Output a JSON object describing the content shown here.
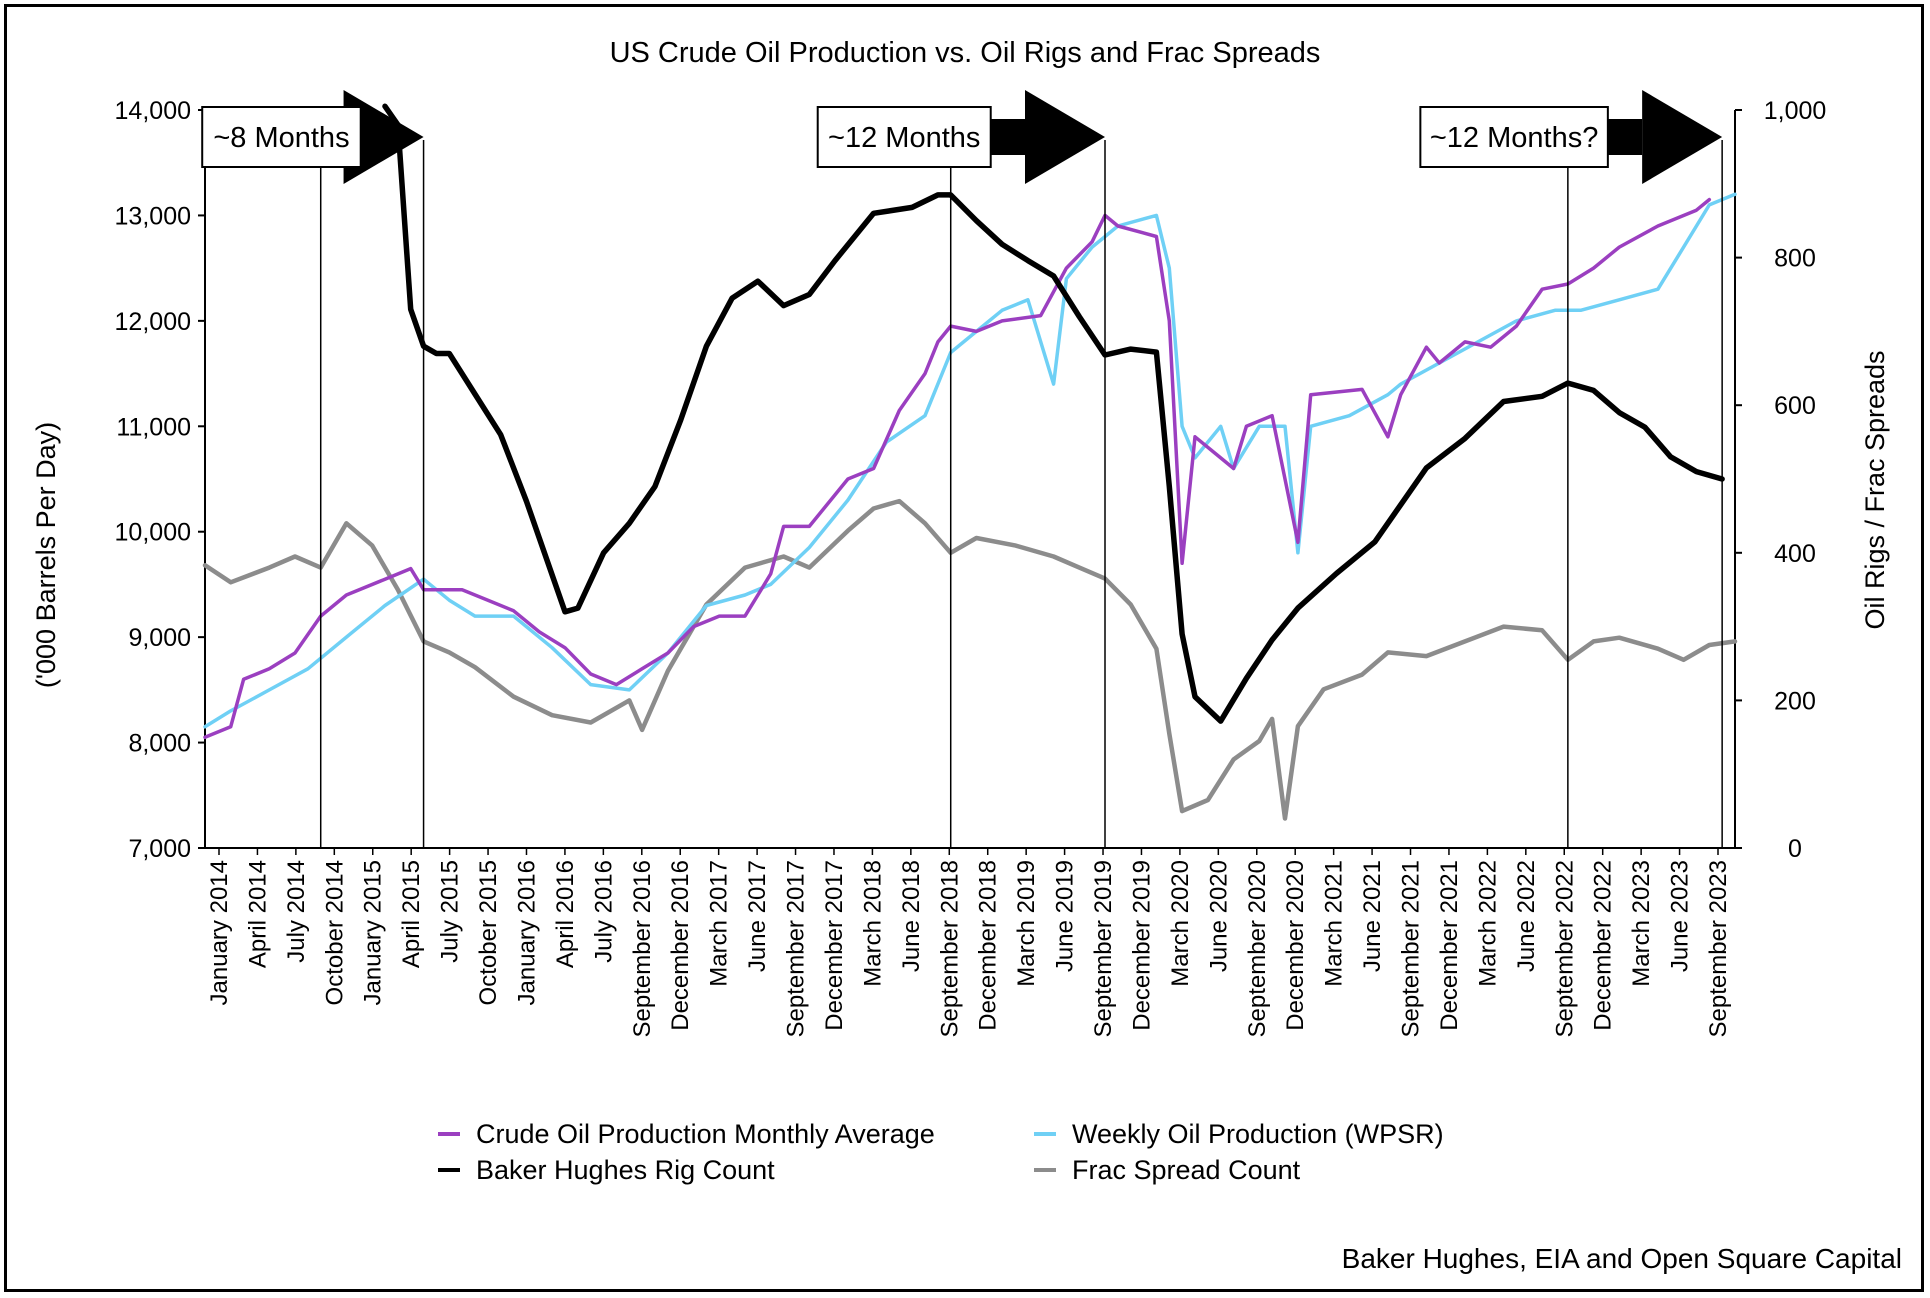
{
  "chart_data": {
    "type": "line",
    "title": "US Crude Oil Production vs. Oil Rigs and Frac Spreads",
    "ylabel_left": "('000 Barrels Per Day)",
    "ylabel_right": "Oil Rigs / Frac Spreads",
    "source": "Baker Hughes, EIA and Open Square Capital",
    "left_axis": {
      "min": 7000,
      "max": 14000,
      "ticks": [
        7000,
        8000,
        9000,
        10000,
        11000,
        12000,
        13000,
        14000
      ],
      "tick_labels": [
        "7,000",
        "8,000",
        "9,000",
        "10,000",
        "11,000",
        "12,000",
        "13,000",
        "14,000"
      ]
    },
    "right_axis": {
      "min": 0,
      "max": 1000,
      "ticks": [
        0,
        200,
        400,
        600,
        800,
        1000
      ],
      "tick_labels": [
        "0",
        "200",
        "400",
        "600",
        "800",
        "1,000"
      ]
    },
    "x_range": [
      "2014-01",
      "2023-12"
    ],
    "x_tick_labels": [
      "January 2014",
      "April 2014",
      "July 2014",
      "October 2014",
      "January 2015",
      "April 2015",
      "July 2015",
      "October 2015",
      "January 2016",
      "April 2016",
      "July 2016",
      "September 2016",
      "December 2016",
      "March 2017",
      "June 2017",
      "September 2017",
      "December 2017",
      "March 2018",
      "June 2018",
      "September 2018",
      "December 2018",
      "March 2019",
      "June 2019",
      "September 2019",
      "December 2019",
      "March 2020",
      "June 2020",
      "September 2020",
      "December 2020",
      "March 2021",
      "June 2021",
      "September 2021",
      "December 2021",
      "March 2022",
      "June 2022",
      "September 2022",
      "December 2022",
      "March 2023",
      "June 2023",
      "September 2023"
    ],
    "legend": [
      "Crude Oil Production Monthly Average",
      "Weekly Oil Production (WPSR)",
      "Baker Hughes Rig Count",
      "Frac Spread Count"
    ],
    "colors": {
      "Crude Oil Production Monthly Average": "#9b3fc0",
      "Weekly Oil Production (WPSR)": "#6fd0f5",
      "Baker Hughes Rig Count": "#000000",
      "Frac Spread Count": "#8c8c8c"
    },
    "annotations": [
      {
        "text": "~8 Months",
        "from": "2014-10",
        "to": "2015-06"
      },
      {
        "text": "~12 Months",
        "from": "2018-11",
        "to": "2019-11"
      },
      {
        "text": "~12 Months?",
        "from": "2022-11",
        "to": "2023-11"
      }
    ],
    "vertical_markers": [
      "2014-10",
      "2015-06",
      "2018-11",
      "2019-11",
      "2022-11",
      "2023-11"
    ],
    "series": [
      {
        "name": "Crude Oil Production Monthly Average",
        "axis": "left",
        "points": [
          [
            "2014-01",
            8050
          ],
          [
            "2014-03",
            8150
          ],
          [
            "2014-04",
            8600
          ],
          [
            "2014-06",
            8700
          ],
          [
            "2014-08",
            8850
          ],
          [
            "2014-10",
            9200
          ],
          [
            "2014-12",
            9400
          ],
          [
            "2015-03",
            9550
          ],
          [
            "2015-05",
            9650
          ],
          [
            "2015-06",
            9450
          ],
          [
            "2015-09",
            9450
          ],
          [
            "2015-11",
            9350
          ],
          [
            "2016-01",
            9250
          ],
          [
            "2016-03",
            9050
          ],
          [
            "2016-05",
            8900
          ],
          [
            "2016-07",
            8650
          ],
          [
            "2016-09",
            8550
          ],
          [
            "2016-11",
            8700
          ],
          [
            "2017-01",
            8850
          ],
          [
            "2017-03",
            9100
          ],
          [
            "2017-05",
            9200
          ],
          [
            "2017-07",
            9200
          ],
          [
            "2017-08",
            9400
          ],
          [
            "2017-09",
            9600
          ],
          [
            "2017-10",
            10050
          ],
          [
            "2017-12",
            10050
          ],
          [
            "2018-03",
            10500
          ],
          [
            "2018-05",
            10600
          ],
          [
            "2018-07",
            11150
          ],
          [
            "2018-09",
            11500
          ],
          [
            "2018-10",
            11800
          ],
          [
            "2018-11",
            11950
          ],
          [
            "2019-01",
            11900
          ],
          [
            "2019-03",
            12000
          ],
          [
            "2019-06",
            12050
          ],
          [
            "2019-08",
            12500
          ],
          [
            "2019-10",
            12750
          ],
          [
            "2019-11",
            13000
          ],
          [
            "2019-12",
            12900
          ],
          [
            "2020-03",
            12800
          ],
          [
            "2020-04",
            12000
          ],
          [
            "2020-05",
            9700
          ],
          [
            "2020-06",
            10900
          ],
          [
            "2020-08",
            10700
          ],
          [
            "2020-09",
            10600
          ],
          [
            "2020-10",
            11000
          ],
          [
            "2020-12",
            11100
          ],
          [
            "2021-02",
            9900
          ],
          [
            "2021-03",
            11300
          ],
          [
            "2021-07",
            11350
          ],
          [
            "2021-09",
            10900
          ],
          [
            "2021-10",
            11300
          ],
          [
            "2021-12",
            11750
          ],
          [
            "2022-01",
            11600
          ],
          [
            "2022-03",
            11800
          ],
          [
            "2022-05",
            11750
          ],
          [
            "2022-07",
            11950
          ],
          [
            "2022-09",
            12300
          ],
          [
            "2022-11",
            12350
          ],
          [
            "2023-01",
            12500
          ],
          [
            "2023-03",
            12700
          ],
          [
            "2023-06",
            12900
          ],
          [
            "2023-09",
            13050
          ],
          [
            "2023-10",
            13150
          ]
        ]
      },
      {
        "name": "Weekly Oil Production (WPSR)",
        "axis": "left",
        "points": [
          [
            "2014-01",
            8150
          ],
          [
            "2014-03",
            8300
          ],
          [
            "2014-06",
            8500
          ],
          [
            "2014-09",
            8700
          ],
          [
            "2014-12",
            9000
          ],
          [
            "2015-03",
            9300
          ],
          [
            "2015-06",
            9550
          ],
          [
            "2015-08",
            9350
          ],
          [
            "2015-10",
            9200
          ],
          [
            "2016-01",
            9200
          ],
          [
            "2016-04",
            8900
          ],
          [
            "2016-07",
            8550
          ],
          [
            "2016-10",
            8500
          ],
          [
            "2017-01",
            8850
          ],
          [
            "2017-04",
            9300
          ],
          [
            "2017-07",
            9400
          ],
          [
            "2017-09",
            9500
          ],
          [
            "2017-12",
            9850
          ],
          [
            "2018-03",
            10300
          ],
          [
            "2018-06",
            10850
          ],
          [
            "2018-09",
            11100
          ],
          [
            "2018-11",
            11700
          ],
          [
            "2019-01",
            11900
          ],
          [
            "2019-03",
            12100
          ],
          [
            "2019-05",
            12200
          ],
          [
            "2019-07",
            11400
          ],
          [
            "2019-08",
            12400
          ],
          [
            "2019-10",
            12700
          ],
          [
            "2019-12",
            12900
          ],
          [
            "2020-03",
            13000
          ],
          [
            "2020-04",
            12500
          ],
          [
            "2020-05",
            11000
          ],
          [
            "2020-06",
            10700
          ],
          [
            "2020-08",
            11000
          ],
          [
            "2020-09",
            10600
          ],
          [
            "2020-11",
            11000
          ],
          [
            "2021-01",
            11000
          ],
          [
            "2021-02",
            9800
          ],
          [
            "2021-03",
            11000
          ],
          [
            "2021-06",
            11100
          ],
          [
            "2021-09",
            11300
          ],
          [
            "2021-10",
            11400
          ],
          [
            "2022-01",
            11600
          ],
          [
            "2022-04",
            11800
          ],
          [
            "2022-07",
            12000
          ],
          [
            "2022-10",
            12100
          ],
          [
            "2022-12",
            12100
          ],
          [
            "2023-03",
            12200
          ],
          [
            "2023-06",
            12300
          ],
          [
            "2023-08",
            12700
          ],
          [
            "2023-10",
            13100
          ],
          [
            "2023-12",
            13200
          ]
        ]
      },
      {
        "name": "Baker Hughes Rig Count",
        "axis": "right",
        "points": [
          [
            "2015-03",
            1005
          ],
          [
            "2015-04",
            980
          ],
          [
            "2015-05",
            730
          ],
          [
            "2015-06",
            680
          ],
          [
            "2015-07",
            670
          ],
          [
            "2015-08",
            670
          ],
          [
            "2015-10",
            615
          ],
          [
            "2015-12",
            560
          ],
          [
            "2016-02",
            470
          ],
          [
            "2016-05",
            320
          ],
          [
            "2016-06",
            325
          ],
          [
            "2016-08",
            400
          ],
          [
            "2016-10",
            440
          ],
          [
            "2016-12",
            490
          ],
          [
            "2017-02",
            580
          ],
          [
            "2017-04",
            680
          ],
          [
            "2017-06",
            745
          ],
          [
            "2017-08",
            768
          ],
          [
            "2017-10",
            735
          ],
          [
            "2017-12",
            750
          ],
          [
            "2018-02",
            796
          ],
          [
            "2018-05",
            860
          ],
          [
            "2018-08",
            868
          ],
          [
            "2018-10",
            885
          ],
          [
            "2018-11",
            885
          ],
          [
            "2019-01",
            850
          ],
          [
            "2019-03",
            818
          ],
          [
            "2019-05",
            796
          ],
          [
            "2019-07",
            775
          ],
          [
            "2019-09",
            720
          ],
          [
            "2019-11",
            668
          ],
          [
            "2020-01",
            676
          ],
          [
            "2020-03",
            672
          ],
          [
            "2020-04",
            490
          ],
          [
            "2020-05",
            290
          ],
          [
            "2020-06",
            205
          ],
          [
            "2020-08",
            172
          ],
          [
            "2020-10",
            230
          ],
          [
            "2020-12",
            282
          ],
          [
            "2021-02",
            325
          ],
          [
            "2021-05",
            372
          ],
          [
            "2021-08",
            415
          ],
          [
            "2021-10",
            465
          ],
          [
            "2021-12",
            515
          ],
          [
            "2022-03",
            555
          ],
          [
            "2022-06",
            605
          ],
          [
            "2022-09",
            612
          ],
          [
            "2022-11",
            630
          ],
          [
            "2023-01",
            620
          ],
          [
            "2023-03",
            590
          ],
          [
            "2023-05",
            570
          ],
          [
            "2023-07",
            530
          ],
          [
            "2023-09",
            510
          ],
          [
            "2023-11",
            500
          ]
        ]
      },
      {
        "name": "Frac Spread Count",
        "axis": "right",
        "points": [
          [
            "2014-01",
            383
          ],
          [
            "2014-03",
            360
          ],
          [
            "2014-06",
            380
          ],
          [
            "2014-08",
            395
          ],
          [
            "2014-10",
            380
          ],
          [
            "2014-12",
            440
          ],
          [
            "2015-02",
            410
          ],
          [
            "2015-04",
            350
          ],
          [
            "2015-06",
            280
          ],
          [
            "2015-08",
            265
          ],
          [
            "2015-10",
            245
          ],
          [
            "2016-01",
            205
          ],
          [
            "2016-04",
            180
          ],
          [
            "2016-07",
            170
          ],
          [
            "2016-10",
            200
          ],
          [
            "2016-11",
            160
          ],
          [
            "2017-01",
            240
          ],
          [
            "2017-04",
            330
          ],
          [
            "2017-07",
            380
          ],
          [
            "2017-10",
            395
          ],
          [
            "2017-12",
            380
          ],
          [
            "2018-03",
            430
          ],
          [
            "2018-05",
            460
          ],
          [
            "2018-07",
            470
          ],
          [
            "2018-09",
            440
          ],
          [
            "2018-11",
            400
          ],
          [
            "2019-01",
            420
          ],
          [
            "2019-04",
            410
          ],
          [
            "2019-07",
            395
          ],
          [
            "2019-09",
            380
          ],
          [
            "2019-11",
            365
          ],
          [
            "2020-01",
            330
          ],
          [
            "2020-03",
            270
          ],
          [
            "2020-04",
            155
          ],
          [
            "2020-05",
            50
          ],
          [
            "2020-07",
            65
          ],
          [
            "2020-09",
            120
          ],
          [
            "2020-11",
            145
          ],
          [
            "2020-12",
            175
          ],
          [
            "2021-01",
            40
          ],
          [
            "2021-02",
            165
          ],
          [
            "2021-04",
            215
          ],
          [
            "2021-07",
            235
          ],
          [
            "2021-09",
            265
          ],
          [
            "2021-12",
            260
          ],
          [
            "2022-03",
            280
          ],
          [
            "2022-06",
            300
          ],
          [
            "2022-09",
            295
          ],
          [
            "2022-11",
            255
          ],
          [
            "2023-01",
            280
          ],
          [
            "2023-03",
            285
          ],
          [
            "2023-06",
            270
          ],
          [
            "2023-08",
            255
          ],
          [
            "2023-10",
            275
          ],
          [
            "2023-12",
            280
          ]
        ]
      }
    ]
  }
}
